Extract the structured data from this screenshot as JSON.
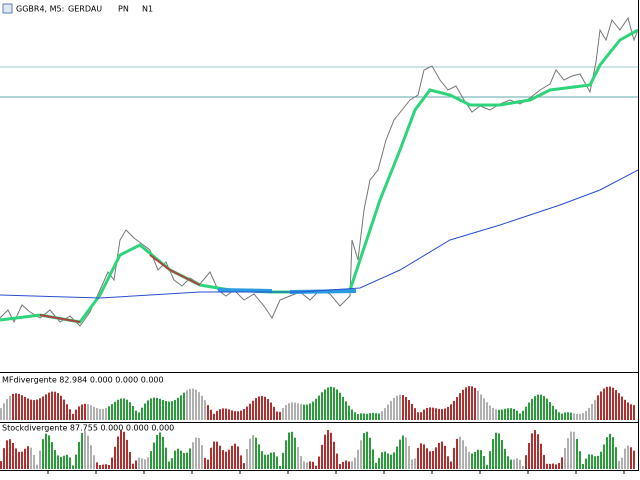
{
  "header": {
    "symbol": "GGBR4, M5:",
    "name": "GERDAU",
    "class": "PN",
    "segment": "N1"
  },
  "indicators": [
    {
      "label": "MFdivergente 82.984 0.000 0.000 0.000"
    },
    {
      "label": "Stockdivergente 87.755 0.000 0.000 0.000"
    }
  ]
}
